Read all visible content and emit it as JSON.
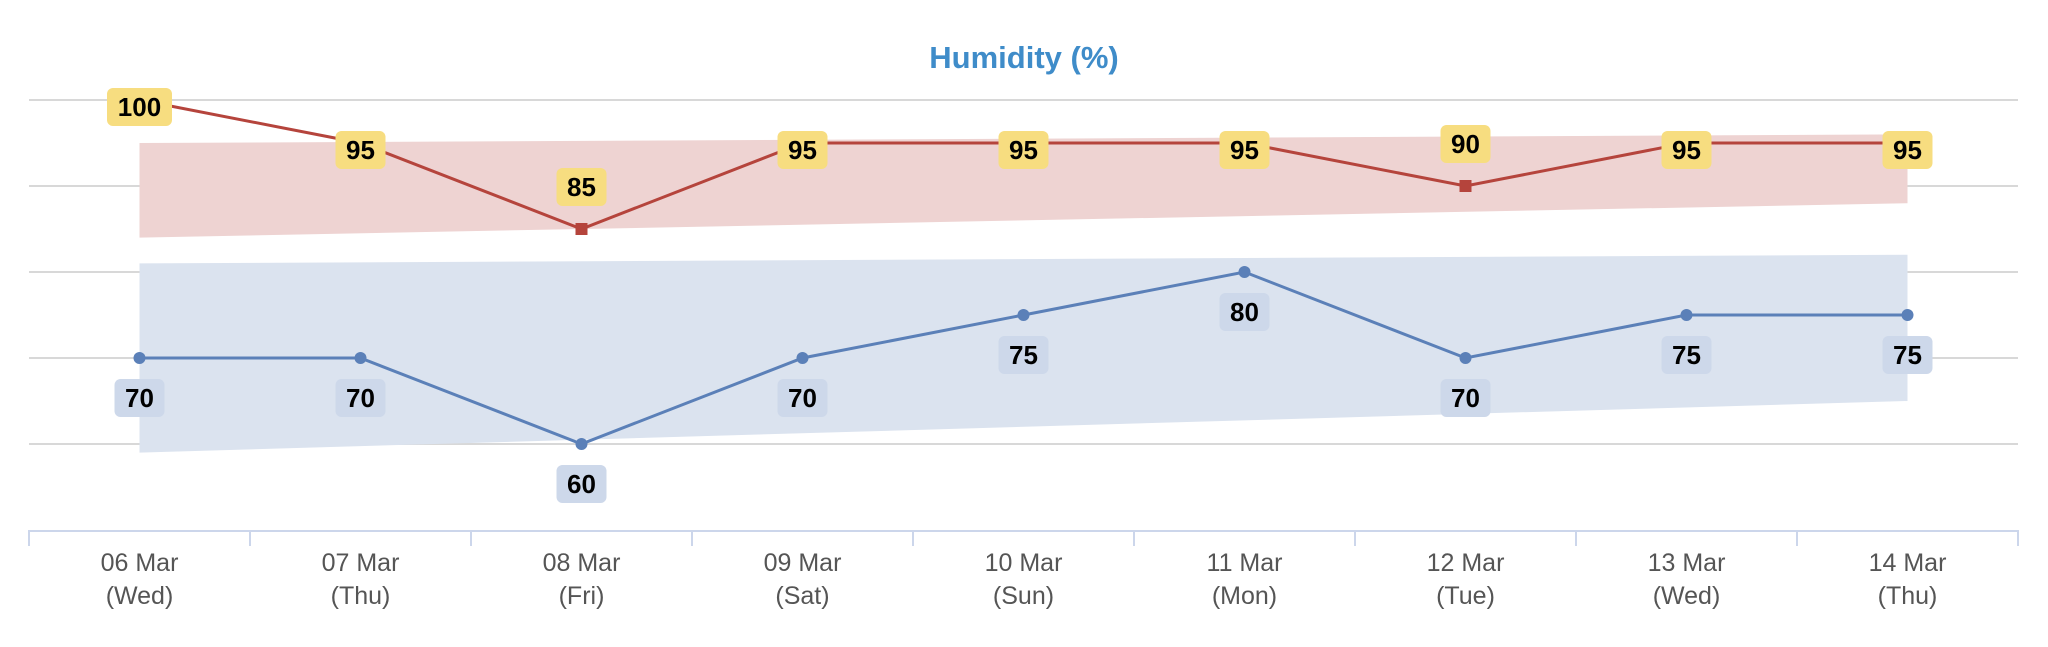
{
  "chart_data": {
    "type": "line",
    "title": "Humidity (%)",
    "categories": [
      [
        "06 Mar",
        "(Wed)"
      ],
      [
        "07 Mar",
        "(Thu)"
      ],
      [
        "08 Mar",
        "(Fri)"
      ],
      [
        "09 Mar",
        "(Sat)"
      ],
      [
        "10 Mar",
        "(Sun)"
      ],
      [
        "11 Mar",
        "(Mon)"
      ],
      [
        "12 Mar",
        "(Tue)"
      ],
      [
        "13 Mar",
        "(Wed)"
      ],
      [
        "14 Mar",
        "(Thu)"
      ]
    ],
    "ylim": [
      50,
      100
    ],
    "yticks": [
      50,
      60,
      70,
      80,
      90,
      100
    ],
    "grid": true,
    "series": [
      {
        "values": [
          100,
          95,
          85,
          95,
          95,
          95,
          90,
          95,
          95
        ],
        "color": "#b5443c",
        "label_bg": "#f7dd80",
        "marker": "square",
        "band": {
          "low": [
            84,
            88
          ],
          "high": [
            95,
            96
          ],
          "color": "#eed3d2"
        }
      },
      {
        "values": [
          70,
          70,
          60,
          70,
          75,
          80,
          70,
          75,
          75
        ],
        "color": "#5b80b8",
        "label_bg": "#cdd8ea",
        "marker": "circle",
        "band": {
          "low": [
            59,
            65
          ],
          "high": [
            81,
            82
          ],
          "color": "#dbe3ef"
        }
      }
    ],
    "title_color": "#3f8cc9"
  }
}
